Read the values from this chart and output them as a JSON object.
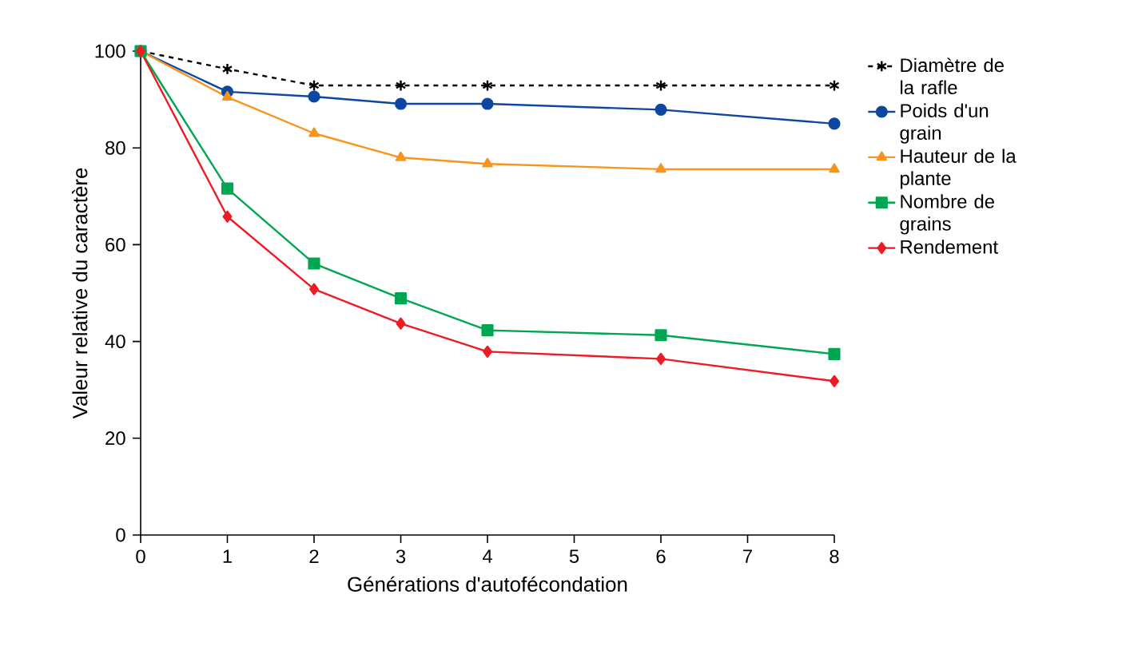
{
  "chart_data": {
    "type": "line",
    "xlabel": "Générations d'autofécondation",
    "ylabel": "Valeur relative du caractère",
    "x": [
      0,
      1,
      2,
      3,
      4,
      6,
      8
    ],
    "series": [
      {
        "name": "Diamètre de la rafle",
        "color": "#000000",
        "marker": "cross",
        "line_style": "dashed",
        "values": [
          100,
          96.3,
          92.9,
          92.9,
          92.9,
          92.9,
          92.9
        ]
      },
      {
        "name": "Poids d'un grain",
        "color": "#0d47a1",
        "marker": "circle",
        "values": [
          100,
          91.6,
          90.6,
          89.1,
          89.1,
          87.9,
          85
        ]
      },
      {
        "name": "Hauteur de la plante",
        "color": "#f7941d",
        "marker": "triangle",
        "values": [
          100,
          90.5,
          83,
          78,
          76.7,
          75.6,
          75.6
        ]
      },
      {
        "name": "Nombre de grains",
        "color": "#00a651",
        "marker": "square",
        "values": [
          100,
          71.6,
          56.1,
          48.9,
          42.3,
          41.3,
          37.4
        ]
      },
      {
        "name": "Rendement",
        "color": "#ed1c24",
        "marker": "diamond",
        "values": [
          100,
          65.8,
          50.8,
          43.7,
          37.9,
          36.4,
          31.8
        ]
      }
    ],
    "xlim": [
      0,
      8
    ],
    "xticks": [
      0,
      1,
      2,
      3,
      4,
      5,
      6,
      7,
      8
    ],
    "ylim": [
      0,
      100
    ],
    "yticks": [
      0,
      20,
      40,
      60,
      80,
      100
    ],
    "grid": false,
    "legend": "right",
    "line_style": "solid"
  }
}
